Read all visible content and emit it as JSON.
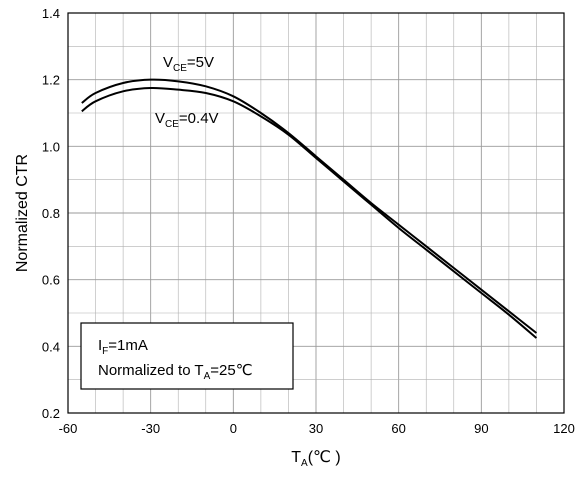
{
  "chart_data": {
    "type": "line",
    "xlabel": {
      "main": "T",
      "sub": "A",
      "unit": "(℃ )"
    },
    "ylabel": "Normalized CTR",
    "xlim": [
      -60,
      120
    ],
    "ylim": [
      0.2,
      1.4
    ],
    "x_ticks": [
      -60,
      -30,
      0,
      30,
      60,
      90,
      120
    ],
    "x_tick_labels": [
      "-60",
      "-30",
      "0",
      "30",
      "60",
      "90",
      "120"
    ],
    "y_ticks": [
      0.2,
      0.4,
      0.6,
      0.8,
      1.0,
      1.2,
      1.4
    ],
    "y_tick_labels": [
      "0.2",
      "0.4",
      "0.6",
      "0.8",
      "1.0",
      "1.2",
      "1.4"
    ],
    "x_minor_step": 10,
    "y_minor_step": 0.1,
    "grid": true,
    "series": [
      {
        "name": "VCE=5V",
        "label": {
          "main": "V",
          "sub": "CE",
          "rest": "=5V"
        },
        "x": [
          -55,
          -50,
          -40,
          -30,
          -20,
          -10,
          0,
          10,
          20,
          30,
          40,
          50,
          60,
          70,
          80,
          90,
          100,
          110
        ],
        "y": [
          1.13,
          1.16,
          1.19,
          1.2,
          1.195,
          1.18,
          1.15,
          1.1,
          1.04,
          0.97,
          0.9,
          0.83,
          0.765,
          0.7,
          0.635,
          0.57,
          0.505,
          0.44
        ]
      },
      {
        "name": "VCE=0.4V",
        "label": {
          "main": "V",
          "sub": "CE",
          "rest": "=0.4V"
        },
        "x": [
          -55,
          -50,
          -40,
          -30,
          -20,
          -10,
          0,
          10,
          20,
          30,
          40,
          50,
          60,
          70,
          80,
          90,
          100,
          110
        ],
        "y": [
          1.105,
          1.135,
          1.165,
          1.175,
          1.17,
          1.16,
          1.135,
          1.09,
          1.035,
          0.965,
          0.895,
          0.825,
          0.755,
          0.69,
          0.625,
          0.56,
          0.495,
          0.425
        ]
      }
    ],
    "annotation": {
      "line1": {
        "main": "I",
        "sub": "F",
        "rest": "=1mA"
      },
      "line2": {
        "main": "Normalized to T",
        "sub": "A",
        "rest": "=25℃"
      }
    },
    "colors": {
      "line": "#000000",
      "grid": "#b0b0b0",
      "frame": "#000000",
      "background": "#ffffff"
    }
  }
}
